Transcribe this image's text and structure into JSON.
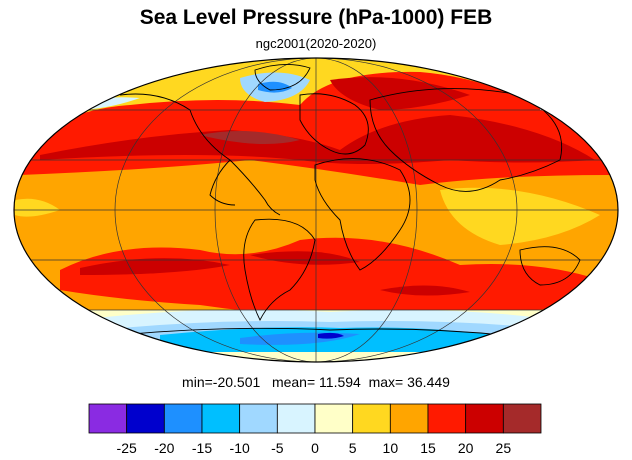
{
  "title": "Sea Level Pressure (hPa-1000) FEB",
  "subtitle": "ngc2001(2020-2020)",
  "stats": {
    "min_label": "min=",
    "min": "-20.501",
    "mean_label": "mean=",
    "mean": "11.594",
    "max_label": "max=",
    "max": "36.449"
  },
  "colorbar": {
    "colors": [
      "#8a2be2",
      "#0000cd",
      "#1e90ff",
      "#00bfff",
      "#a0d8ff",
      "#d8f4ff",
      "#ffffc8",
      "#ffd820",
      "#ffa500",
      "#ff1a00",
      "#cc0000",
      "#a52a2a"
    ],
    "labels": [
      "-25",
      "-20",
      "-15",
      "-10",
      "-5",
      "0",
      "5",
      "10",
      "15",
      "20",
      "25"
    ]
  }
}
